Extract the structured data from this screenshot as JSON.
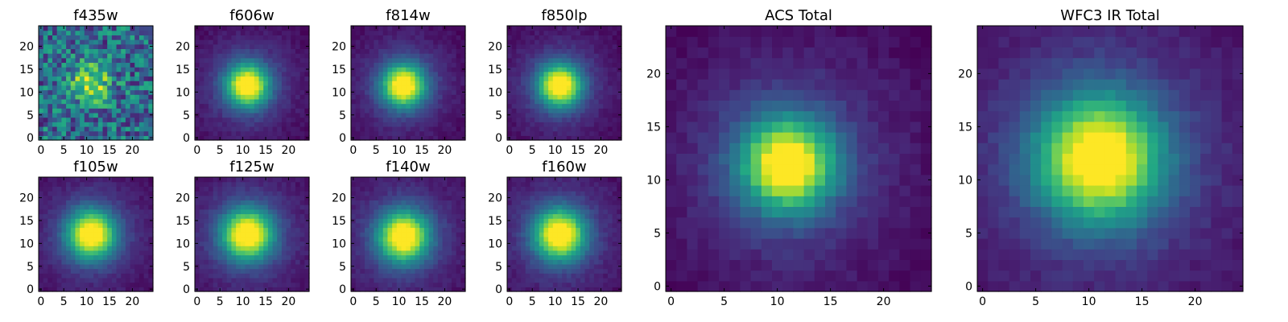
{
  "chart_data": [
    {
      "type": "heatmap",
      "title": "f435w",
      "pattern": "noisy",
      "x_ticks": [
        0,
        5,
        10,
        15,
        20
      ],
      "y_ticks": [
        0,
        5,
        10,
        15,
        20
      ],
      "xlim": [
        0,
        25
      ],
      "ylim": [
        0,
        25
      ],
      "peak": [
        11.5,
        12.5
      ],
      "spread": 3.0,
      "colormap": "viridis"
    },
    {
      "type": "heatmap",
      "title": "f606w",
      "pattern": "gaussian",
      "x_ticks": [
        0,
        5,
        10,
        15,
        20
      ],
      "y_ticks": [
        0,
        5,
        10,
        15,
        20
      ],
      "xlim": [
        0,
        25
      ],
      "ylim": [
        0,
        25
      ],
      "peak": [
        11.5,
        12.0
      ],
      "spread": 3.2,
      "colormap": "viridis"
    },
    {
      "type": "heatmap",
      "title": "f814w",
      "pattern": "gaussian",
      "x_ticks": [
        0,
        5,
        10,
        15,
        20
      ],
      "y_ticks": [
        0,
        5,
        10,
        15,
        20
      ],
      "xlim": [
        0,
        25
      ],
      "ylim": [
        0,
        25
      ],
      "peak": [
        11.5,
        12.0
      ],
      "spread": 3.2,
      "colormap": "viridis"
    },
    {
      "type": "heatmap",
      "title": "f850lp",
      "pattern": "gaussian",
      "x_ticks": [
        0,
        5,
        10,
        15,
        20
      ],
      "y_ticks": [
        0,
        5,
        10,
        15,
        20
      ],
      "xlim": [
        0,
        25
      ],
      "ylim": [
        0,
        25
      ],
      "peak": [
        11.5,
        12.0
      ],
      "spread": 3.2,
      "colormap": "viridis"
    },
    {
      "type": "heatmap",
      "title": "f105w",
      "pattern": "gaussian",
      "x_ticks": [
        0,
        5,
        10,
        15,
        20
      ],
      "y_ticks": [
        0,
        5,
        10,
        15,
        20
      ],
      "xlim": [
        0,
        25
      ],
      "ylim": [
        0,
        25
      ],
      "peak": [
        11.5,
        12.5
      ],
      "spread": 3.6,
      "colormap": "viridis"
    },
    {
      "type": "heatmap",
      "title": "f125w",
      "pattern": "gaussian",
      "x_ticks": [
        0,
        5,
        10,
        15,
        20
      ],
      "y_ticks": [
        0,
        5,
        10,
        15,
        20
      ],
      "xlim": [
        0,
        25
      ],
      "ylim": [
        0,
        25
      ],
      "peak": [
        11.5,
        12.5
      ],
      "spread": 3.8,
      "colormap": "viridis"
    },
    {
      "type": "heatmap",
      "title": "f140w",
      "pattern": "gaussian",
      "x_ticks": [
        0,
        5,
        10,
        15,
        20
      ],
      "y_ticks": [
        0,
        5,
        10,
        15,
        20
      ],
      "xlim": [
        0,
        25
      ],
      "ylim": [
        0,
        25
      ],
      "peak": [
        11.5,
        12.0
      ],
      "spread": 3.8,
      "colormap": "viridis"
    },
    {
      "type": "heatmap",
      "title": "f160w",
      "pattern": "gaussian",
      "x_ticks": [
        0,
        5,
        10,
        15,
        20
      ],
      "y_ticks": [
        0,
        5,
        10,
        15,
        20
      ],
      "xlim": [
        0,
        25
      ],
      "ylim": [
        0,
        25
      ],
      "peak": [
        11.5,
        12.5
      ],
      "spread": 3.8,
      "colormap": "viridis"
    },
    {
      "type": "heatmap",
      "title": "ACS Total",
      "pattern": "gaussian",
      "x_ticks": [
        0,
        5,
        10,
        15,
        20
      ],
      "y_ticks": [
        0,
        5,
        10,
        15,
        20
      ],
      "xlim": [
        0,
        25
      ],
      "ylim": [
        0,
        25
      ],
      "peak": [
        11.5,
        12.0
      ],
      "spread": 3.0,
      "colormap": "viridis"
    },
    {
      "type": "heatmap",
      "title": "WFC3 IR Total",
      "pattern": "gaussian",
      "x_ticks": [
        0,
        5,
        10,
        15,
        20
      ],
      "y_ticks": [
        0,
        5,
        10,
        15,
        20
      ],
      "xlim": [
        0,
        25
      ],
      "ylim": [
        0,
        25
      ],
      "peak": [
        11.5,
        12.5
      ],
      "spread": 4.0,
      "colormap": "viridis"
    }
  ]
}
